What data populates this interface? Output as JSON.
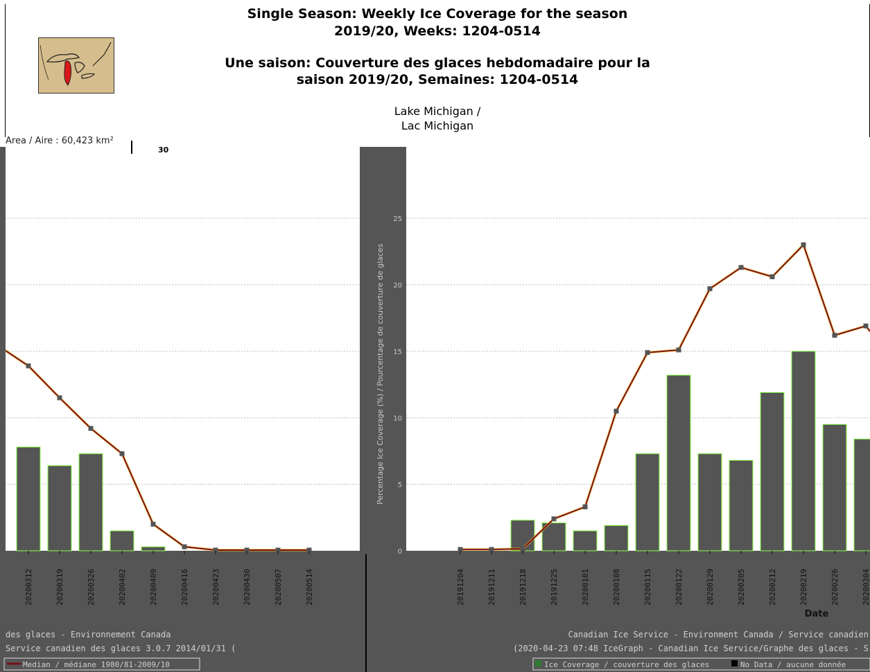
{
  "header": {
    "title_en_1": "Single Season: Weekly Ice Coverage for the season",
    "title_en_2": "2019/20, Weeks: 1204-0514",
    "title_fr_1": "Une saison: Couverture des glaces hebdomadaire pour la",
    "title_fr_2": "saison 2019/20, Semaines: 1204-0514",
    "lake_1": "Lake Michigan /",
    "lake_2": "Lac Michigan",
    "area": "Area / Aire : 60,423 km²",
    "top_tick": "30"
  },
  "chart_data": {
    "type": "bar",
    "title": "Single Season: Weekly Ice Coverage for the season 2019/20, Weeks: 1204-0514",
    "ylabel": "Percentage Ice Coverage (%) / Pourcentage de couverture de glaces",
    "xlabel": "Date",
    "ylim": [
      0,
      30
    ],
    "y_ticks": [
      "0",
      "5",
      "10",
      "15",
      "20",
      "25"
    ],
    "grid": true,
    "categories": [
      "20191204",
      "20191211",
      "20191218",
      "20191225",
      "20200101",
      "20200108",
      "20200115",
      "20200122",
      "20200129",
      "20200205",
      "20200212",
      "20200219",
      "20200226",
      "20200304",
      "20200312",
      "20200319",
      "20200326",
      "20200402",
      "20200409",
      "20200416",
      "20200423",
      "20200430",
      "20200507",
      "20200514"
    ],
    "series": [
      {
        "name": "Ice Coverage / Couverture des glaces",
        "type": "bar",
        "color": "#555555",
        "values": [
          0,
          0,
          2.3,
          2.1,
          1.5,
          1.9,
          7.3,
          13.2,
          7.3,
          6.8,
          11.9,
          15.0,
          9.5,
          8.4,
          7.8,
          6.4,
          7.3,
          1.5,
          0.3,
          0,
          0,
          0,
          0,
          0
        ]
      },
      {
        "name": "Median / médiane 1980/81-2009/10",
        "type": "line",
        "color": "#7a0f1a",
        "values": [
          0.1,
          0.1,
          0.15,
          2.4,
          3.3,
          10.5,
          14.9,
          15.1,
          19.7,
          21.3,
          20.6,
          23.0,
          16.2,
          16.9,
          13.9,
          11.5,
          9.2,
          7.3,
          2.0,
          0.3,
          0.05,
          0.05,
          0.05,
          0.05
        ]
      }
    ],
    "legend": [
      {
        "name": "Median / médiane 1980/81-2009/10",
        "color": "#7a0f1a"
      },
      {
        "name": "Ice Coverage / couverture des glaces",
        "color": "#2e7d32"
      },
      {
        "name": "No Data / aucune donnée",
        "color": "#000000"
      }
    ],
    "legend_position": "bottom"
  },
  "footer": {
    "left_1": "des glaces - Environnement Canada",
    "left_2": "Service canadien des glaces 3.0.7 2014/01/31 (",
    "right_1": "Canadian Ice Service - Environment Canada / Service canadien",
    "right_2": "(2020-04-23 07:48 IceGraph - Canadian Ice Service/Graphe des glaces - S",
    "legend_median": "Median / médiane 1980/81-2009/10",
    "legend_ice": "Ice Coverage / couverture des glaces",
    "legend_nodata": "No Data / aucune donnée"
  },
  "colors": {
    "panel": "#555555",
    "plot": "#ffffff",
    "bar": "#555555",
    "bar_edge": "#8cff4a",
    "median": "#7a0f1a",
    "median_halo": "#f0c020",
    "footer_text": "#d0d0d0"
  }
}
